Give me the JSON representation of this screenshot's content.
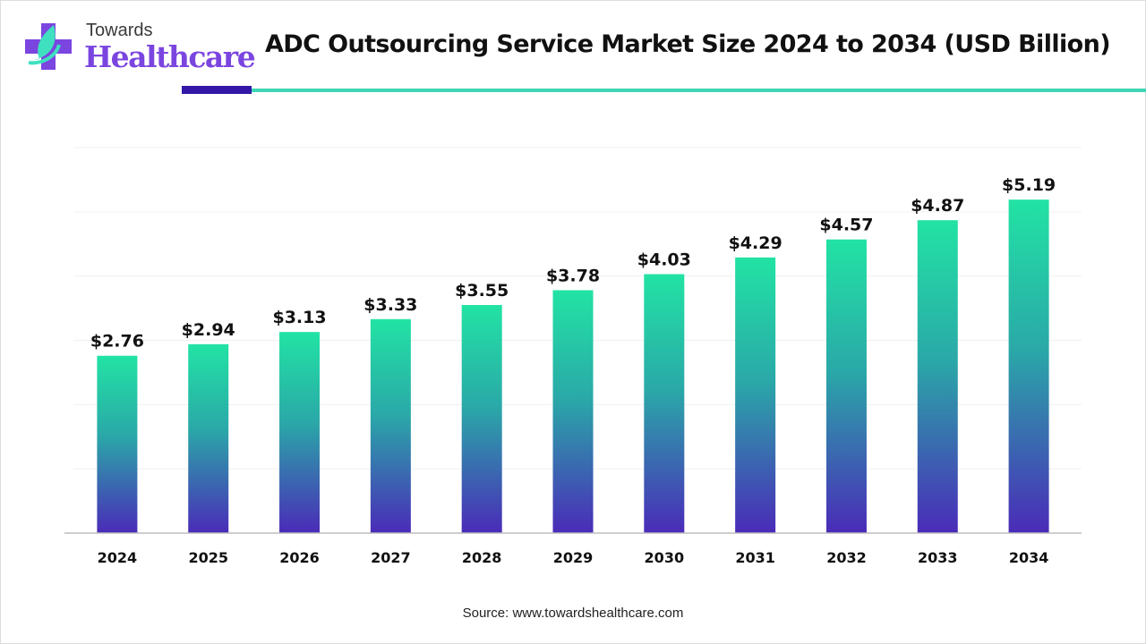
{
  "brand": {
    "line1": "Towards",
    "line2": "Healthcare"
  },
  "colors": {
    "bar_top": "#22e3a4",
    "bar_bottom": "#4a2bb8",
    "accent_dark": "#3318a8",
    "accent_teal": "#3fd6b6",
    "logo_purple": "#7b45e0"
  },
  "chart_data": {
    "type": "bar",
    "title": "ADC Outsourcing Service Market Size 2024 to 2034 (USD Billion)",
    "categories": [
      "2024",
      "2025",
      "2026",
      "2027",
      "2028",
      "2029",
      "2030",
      "2031",
      "2032",
      "2033",
      "2034"
    ],
    "values": [
      2.76,
      2.94,
      3.13,
      3.33,
      3.55,
      3.78,
      4.03,
      4.29,
      4.57,
      4.87,
      5.19
    ],
    "data_labels": [
      "$2.76",
      "$2.94",
      "$3.13",
      "$3.33",
      "$3.55",
      "$3.78",
      "$4.03",
      "$4.29",
      "$4.57",
      "$4.87",
      "$5.19"
    ],
    "xlabel": "",
    "ylabel": "",
    "ylim": [
      0,
      6
    ],
    "grid": true,
    "legend": "none"
  },
  "source": "Source: www.towardshealthcare.com"
}
